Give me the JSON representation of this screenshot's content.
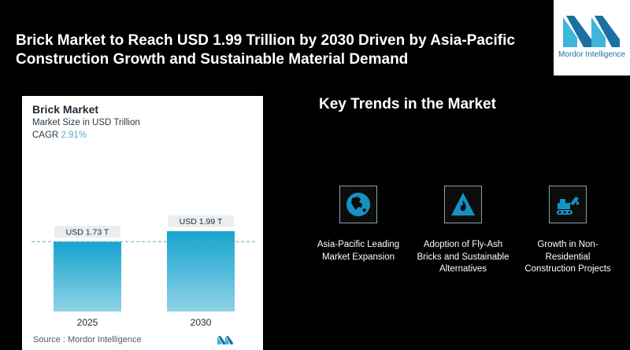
{
  "header": {
    "headline": "Brick Market to Reach USD 1.99 Trillion by 2030 Driven by Asia-Pacific Construction Growth and Sustainable Material Demand",
    "logo_text": "Mordor Intelligence"
  },
  "chart_card": {
    "title": "Brick Market",
    "subtitle": "Market Size in USD Trillion",
    "cagr_label": "CAGR",
    "cagr_value": "2.91%",
    "source": "Source :  Mordor Intelligence"
  },
  "chart_data": {
    "type": "bar",
    "title": "Brick Market",
    "ylabel": "Market Size in USD Trillion",
    "categories": [
      "2025",
      "2030"
    ],
    "values": [
      1.73,
      1.99
    ],
    "data_labels": [
      "USD 1.73 T",
      "USD 1.99 T"
    ],
    "grid": false,
    "colors": {
      "bar_top": "#16a3cf",
      "bar_bottom": "#8fd3e6",
      "dashed_line": "#5fa8c6"
    }
  },
  "trends": {
    "title": "Key Trends in the Market",
    "items": [
      {
        "icon": "globe-asia-icon",
        "label": "Asia-Pacific Leading Market Expansion"
      },
      {
        "icon": "fire-warning-icon",
        "label": "Adoption of Fly-Ash Bricks and Sustainable Alternatives"
      },
      {
        "icon": "excavator-icon",
        "label": "Growth in Non-Residential Construction Projects"
      }
    ]
  },
  "colors": {
    "accent": "#16a3cf",
    "background": "#000000",
    "icon_fill": "#1493c2"
  }
}
